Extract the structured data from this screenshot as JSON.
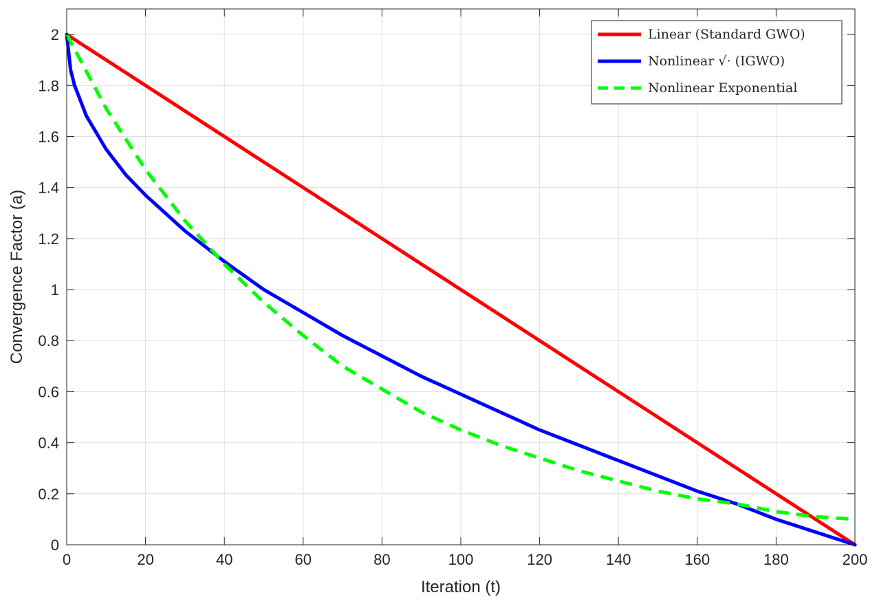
{
  "chart_data": {
    "type": "line",
    "title": "",
    "xlabel": "Iteration (t)",
    "ylabel": "Convergence Factor (a)",
    "xlim": [
      0,
      200
    ],
    "ylim": [
      0,
      2.1
    ],
    "xticks": [
      0,
      20,
      40,
      60,
      80,
      100,
      120,
      140,
      160,
      180,
      200
    ],
    "xtick_labels": [
      "0",
      "20",
      "40",
      "60",
      "80",
      "100",
      "120",
      "140",
      "160",
      "180",
      "200"
    ],
    "yticks": [
      0,
      0.2,
      0.4,
      0.6,
      0.8,
      1,
      1.2,
      1.4,
      1.6,
      1.8,
      2
    ],
    "ytick_labels": [
      "0",
      "0.2",
      "0.4",
      "0.6",
      "0.8",
      "1",
      "1.2",
      "1.4",
      "1.6",
      "1.8",
      "2"
    ],
    "grid": true,
    "legend_position": "top-right",
    "series": [
      {
        "name": "Linear (Standard GWO)",
        "color": "#ff0000",
        "style": "solid",
        "x": [
          0,
          200
        ],
        "y": [
          2,
          0
        ]
      },
      {
        "name": "Nonlinear √· (IGWO)",
        "color": "#0000ff",
        "style": "solid",
        "x": [
          0,
          1,
          2,
          5,
          10,
          15,
          20,
          30,
          40,
          50,
          60,
          70,
          80,
          90,
          100,
          110,
          120,
          130,
          140,
          150,
          160,
          170,
          180,
          190,
          200
        ],
        "y": [
          2,
          1.86,
          1.8,
          1.68,
          1.55,
          1.45,
          1.37,
          1.23,
          1.11,
          1.0,
          0.91,
          0.82,
          0.74,
          0.66,
          0.59,
          0.52,
          0.45,
          0.39,
          0.33,
          0.27,
          0.21,
          0.16,
          0.1,
          0.05,
          0
        ]
      },
      {
        "name": "Nonlinear Exponential",
        "color": "#00ff00",
        "style": "dashed",
        "x": [
          0,
          10,
          20,
          30,
          40,
          50,
          60,
          70,
          80,
          90,
          100,
          110,
          120,
          130,
          140,
          150,
          160,
          170,
          180,
          190,
          200
        ],
        "y": [
          2,
          1.71,
          1.47,
          1.27,
          1.1,
          0.95,
          0.82,
          0.7,
          0.61,
          0.52,
          0.45,
          0.39,
          0.34,
          0.29,
          0.25,
          0.21,
          0.18,
          0.16,
          0.13,
          0.11,
          0.1
        ]
      }
    ]
  }
}
